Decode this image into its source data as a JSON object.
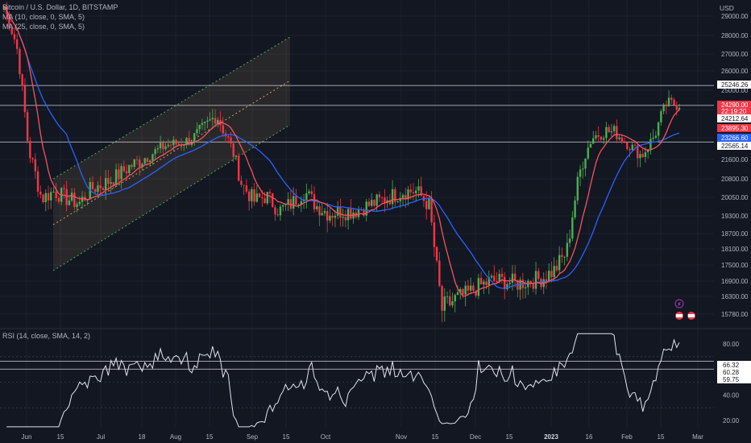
{
  "header": {
    "symbol": "Bitcoin / U.S. Dollar, 1D, BITSTAMP",
    "ma_fast": "MA (10, close, 0, SMA, 5)",
    "ma_slow": "MA (25, close, 0, SMA, 5)",
    "rsi": "RSI (14, close, SMA, 14, 2)",
    "currency": "USD"
  },
  "colors": {
    "background": "#131722",
    "up": "#26a69a",
    "up_candle": "#4caf50",
    "down_candle": "#f23645",
    "ma_fast": "#f7525f",
    "ma_slow": "#2962ff",
    "channel": "#c8a26b",
    "rsi_line": "#e0e3eb"
  },
  "chart_data": [
    {
      "type": "candlestick",
      "title": "Bitcoin / U.S. Dollar, 1D, BITSTAMP",
      "x_ticks": [
        "Jun",
        "15",
        "Jul",
        "18",
        "Aug",
        "15",
        "Sep",
        "15",
        "Oct",
        "Nov",
        "15",
        "Dec",
        "15",
        "2023",
        "16",
        "Feb",
        "15",
        "Mar"
      ],
      "y_ticks": [
        29000,
        28000,
        27000,
        26000,
        25000,
        24000,
        22800,
        21600,
        20800,
        20050,
        19300,
        18700,
        18100,
        17500,
        16900,
        16300,
        15780
      ],
      "price_labels": [
        {
          "label": "25246.26",
          "value": 25246.26,
          "style": "line"
        },
        {
          "label": "24290.00",
          "value": 24290.0,
          "style": "red"
        },
        {
          "label": "22:19:20",
          "value": 24212.64,
          "style": "red-timer"
        },
        {
          "label": "24212.64",
          "value": 24212.64,
          "style": "line"
        },
        {
          "label": "23895.30",
          "value": 23895.3,
          "style": "red"
        },
        {
          "label": "23266.60",
          "value": 23266.6,
          "style": "blue"
        },
        {
          "label": "22565.14",
          "value": 22565.14,
          "style": "line"
        }
      ],
      "horizontal_lines": [
        25246.26,
        24212.64,
        22565.14
      ],
      "series": [
        {
          "name": "MA (10, close, 0, SMA, 5)"
        },
        {
          "name": "MA (25, close, 0, SMA, 5)"
        }
      ],
      "close_path": [
        29500,
        27500,
        22000,
        20000,
        20300,
        20000,
        19800,
        20400,
        20600,
        20900,
        21300,
        21600,
        22000,
        22400,
        22500,
        22700,
        23200,
        23800,
        22600,
        20600,
        19900,
        20100,
        19500,
        19800,
        20300,
        19700,
        19400,
        19500,
        19500,
        19700,
        19900,
        20100,
        20300,
        20300,
        19700,
        15900,
        16200,
        16400,
        16700,
        16900,
        16900,
        16800,
        16900,
        17000,
        17300,
        18000,
        21000,
        22800,
        23100,
        23000,
        22400,
        21800,
        22900,
        24300,
        24290
      ],
      "rsi": {
        "title": "RSI (14, close, SMA, 14, 2)",
        "y_ticks": [
          80,
          40,
          20
        ],
        "labels": [
          {
            "label": "66.32",
            "value": 66.32
          },
          {
            "label": "60.28",
            "value": 60.28
          },
          {
            "label": "59.75",
            "value": 59.75
          }
        ],
        "bands": [
          70,
          50,
          30
        ]
      }
    }
  ]
}
